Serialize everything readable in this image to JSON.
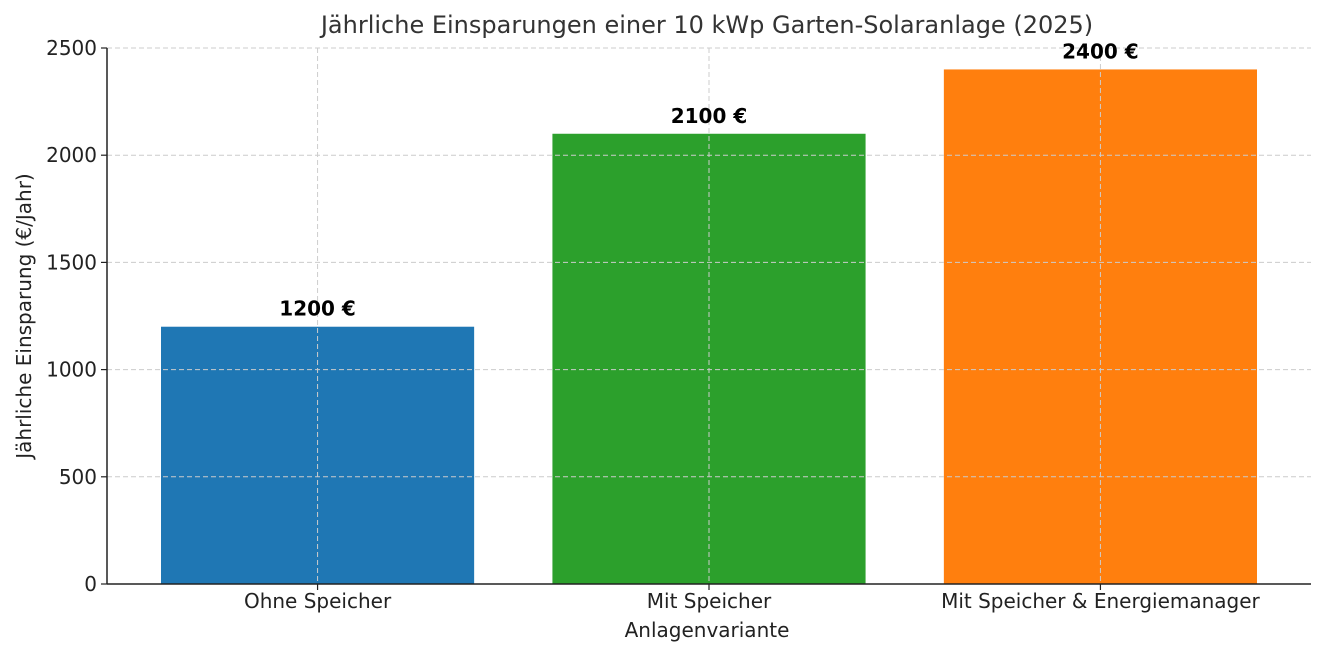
{
  "chart_data": {
    "type": "bar",
    "title": "Jährliche Einsparungen einer 10 kWp Garten-Solaranlage (2025)",
    "xlabel": "Anlagenvariante",
    "ylabel": "Jährliche Einsparung (€/Jahr)",
    "categories": [
      "Ohne Speicher",
      "Mit Speicher",
      "Mit Speicher & Energiemanager"
    ],
    "values": [
      1200,
      2100,
      2400
    ],
    "data_labels": [
      "1200 €",
      "2100 €",
      "2400 €"
    ],
    "colors": [
      "#1f77b4",
      "#2ca02c",
      "#ff7f0e"
    ],
    "ylim": [
      0,
      2500
    ],
    "yticks": [
      0,
      500,
      1000,
      1500,
      2000,
      2500
    ],
    "grid": true
  }
}
